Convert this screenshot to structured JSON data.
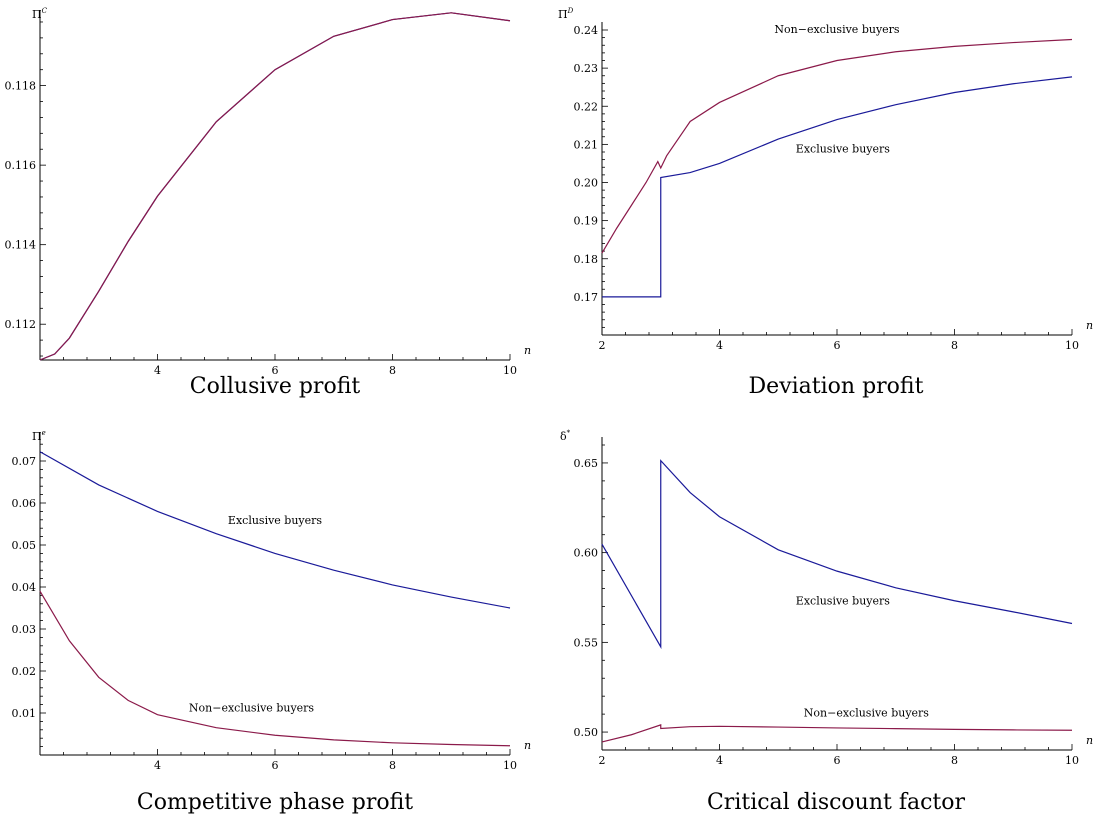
{
  "chart_data": [
    {
      "type": "line",
      "caption": "Collusive profit",
      "ylabel_main": "Π",
      "ylabel_sup": "C",
      "xlabel": "n",
      "xlim": [
        2,
        10
      ],
      "ylim": [
        0.1111,
        0.1197
      ],
      "xticks": [
        4,
        6,
        8,
        10
      ],
      "yticks": [
        0.112,
        0.114,
        0.116,
        0.118
      ],
      "ytick_labels": [
        "0.112",
        "0.114",
        "0.116",
        "0.118"
      ],
      "series": [
        {
          "color": "#1a1a99",
          "x": [
            2,
            2.25,
            2.5,
            3,
            3.5,
            4,
            5,
            6,
            7,
            8,
            9,
            10
          ],
          "y": [
            0.1111,
            0.11125,
            0.11165,
            0.11283,
            0.11408,
            0.11522,
            0.11709,
            0.1184,
            0.11924,
            0.11966,
            0.11983,
            0.11963
          ]
        },
        {
          "color": "#8b1a4a",
          "x": [
            2,
            2.25,
            2.5,
            3,
            3.5,
            4,
            5,
            6,
            7,
            8,
            9,
            10
          ],
          "y": [
            0.1111,
            0.11125,
            0.11165,
            0.11283,
            0.11408,
            0.11522,
            0.11709,
            0.1184,
            0.11924,
            0.11966,
            0.11983,
            0.11963
          ]
        }
      ],
      "annotations": []
    },
    {
      "type": "line",
      "caption": "Deviation profit",
      "ylabel_main": "Π",
      "ylabel_sup": "D",
      "xlabel": "n",
      "xlim": [
        2,
        10
      ],
      "ylim": [
        0.16,
        0.24
      ],
      "xticks": [
        2,
        4,
        6,
        8,
        10
      ],
      "yticks": [
        0.17,
        0.18,
        0.19,
        0.2,
        0.21,
        0.22,
        0.23,
        0.24
      ],
      "ytick_labels": [
        "0.17",
        "0.18",
        "0.19",
        "0.20",
        "0.21",
        "0.22",
        "0.23",
        "0.24"
      ],
      "series": [
        {
          "color": "#1a1a99",
          "x": [
            2,
            3,
            3,
            3.5,
            4,
            5,
            6,
            7,
            8,
            9,
            10
          ],
          "y": [
            0.17,
            0.17,
            0.2013,
            0.2026,
            0.205,
            0.2114,
            0.2165,
            0.2204,
            0.2236,
            0.2259,
            0.2277
          ]
        },
        {
          "color": "#8b1a4a",
          "x": [
            2,
            2.25,
            2.5,
            2.75,
            2.95,
            3,
            3.1,
            3.5,
            4,
            5,
            6,
            7,
            8,
            9,
            10
          ],
          "y": [
            0.1815,
            0.188,
            0.194,
            0.2,
            0.2055,
            0.2038,
            0.207,
            0.216,
            0.221,
            0.228,
            0.232,
            0.2343,
            0.2357,
            0.2367,
            0.2375
          ]
        }
      ],
      "annotations": [
        {
          "text": "Non−exclusive buyers",
          "x": 6.0,
          "y": 0.2392
        },
        {
          "text": "Exclusive buyers",
          "x": 6.1,
          "y": 0.2079
        }
      ]
    },
    {
      "type": "line",
      "caption": "Competitive phase profit",
      "ylabel_main": "Π",
      "ylabel_sup": "e",
      "xlabel": "n",
      "xlim": [
        2,
        10
      ],
      "ylim": [
        0,
        0.075
      ],
      "xticks": [
        4,
        6,
        8,
        10
      ],
      "yticks": [
        0.01,
        0.02,
        0.03,
        0.04,
        0.05,
        0.06,
        0.07
      ],
      "ytick_labels": [
        "0.01",
        "0.02",
        "0.03",
        "0.04",
        "0.05",
        "0.06",
        "0.07"
      ],
      "series": [
        {
          "color": "#1a1a99",
          "x": [
            2,
            3,
            4,
            5,
            6,
            7,
            8,
            9,
            10
          ],
          "y": [
            0.0722,
            0.0643,
            0.058,
            0.0527,
            0.048,
            0.044,
            0.0405,
            0.0376,
            0.035
          ]
        },
        {
          "color": "#8b1a4a",
          "x": [
            2,
            2.5,
            3,
            3.5,
            4,
            5,
            6,
            7,
            8,
            9,
            10
          ],
          "y": [
            0.039,
            0.0272,
            0.0185,
            0.013,
            0.0096,
            0.0065,
            0.0047,
            0.0036,
            0.0029,
            0.0025,
            0.0022
          ]
        }
      ],
      "annotations": [
        {
          "text": "Exclusive buyers",
          "x": 6.0,
          "y": 0.055
        },
        {
          "text": "Non−exclusive buyers",
          "x": 5.6,
          "y": 0.0103
        }
      ]
    },
    {
      "type": "line",
      "caption": "Critical discount factor",
      "ylabel_main": "δ",
      "ylabel_sup": "*",
      "xlabel": "n",
      "xlim": [
        2,
        10
      ],
      "ylim": [
        0.49,
        0.66
      ],
      "xticks": [
        2,
        4,
        6,
        8,
        10
      ],
      "yticks": [
        0.5,
        0.55,
        0.6,
        0.65
      ],
      "ytick_labels": [
        "0.50",
        "0.55",
        "0.60",
        "0.65"
      ],
      "series": [
        {
          "color": "#1a1a99",
          "x": [
            2,
            3,
            3,
            3.5,
            4,
            5,
            6,
            7,
            8,
            9,
            10
          ],
          "y": [
            0.6047,
            0.5475,
            0.6513,
            0.6335,
            0.62,
            0.6016,
            0.5897,
            0.5804,
            0.5732,
            0.567,
            0.5605
          ]
        },
        {
          "color": "#8b1a4a",
          "x": [
            2,
            2.5,
            3,
            3,
            3.5,
            4,
            5,
            6,
            7,
            8,
            9,
            10
          ],
          "y": [
            0.4945,
            0.4985,
            0.504,
            0.502,
            0.503,
            0.5032,
            0.5028,
            0.5023,
            0.5019,
            0.5015,
            0.5012,
            0.501
          ]
        }
      ],
      "annotations": [
        {
          "text": "Exclusive buyers",
          "x": 6.1,
          "y": 0.571
        },
        {
          "text": "Non−exclusive buyers",
          "x": 6.5,
          "y": 0.5087
        }
      ]
    }
  ]
}
